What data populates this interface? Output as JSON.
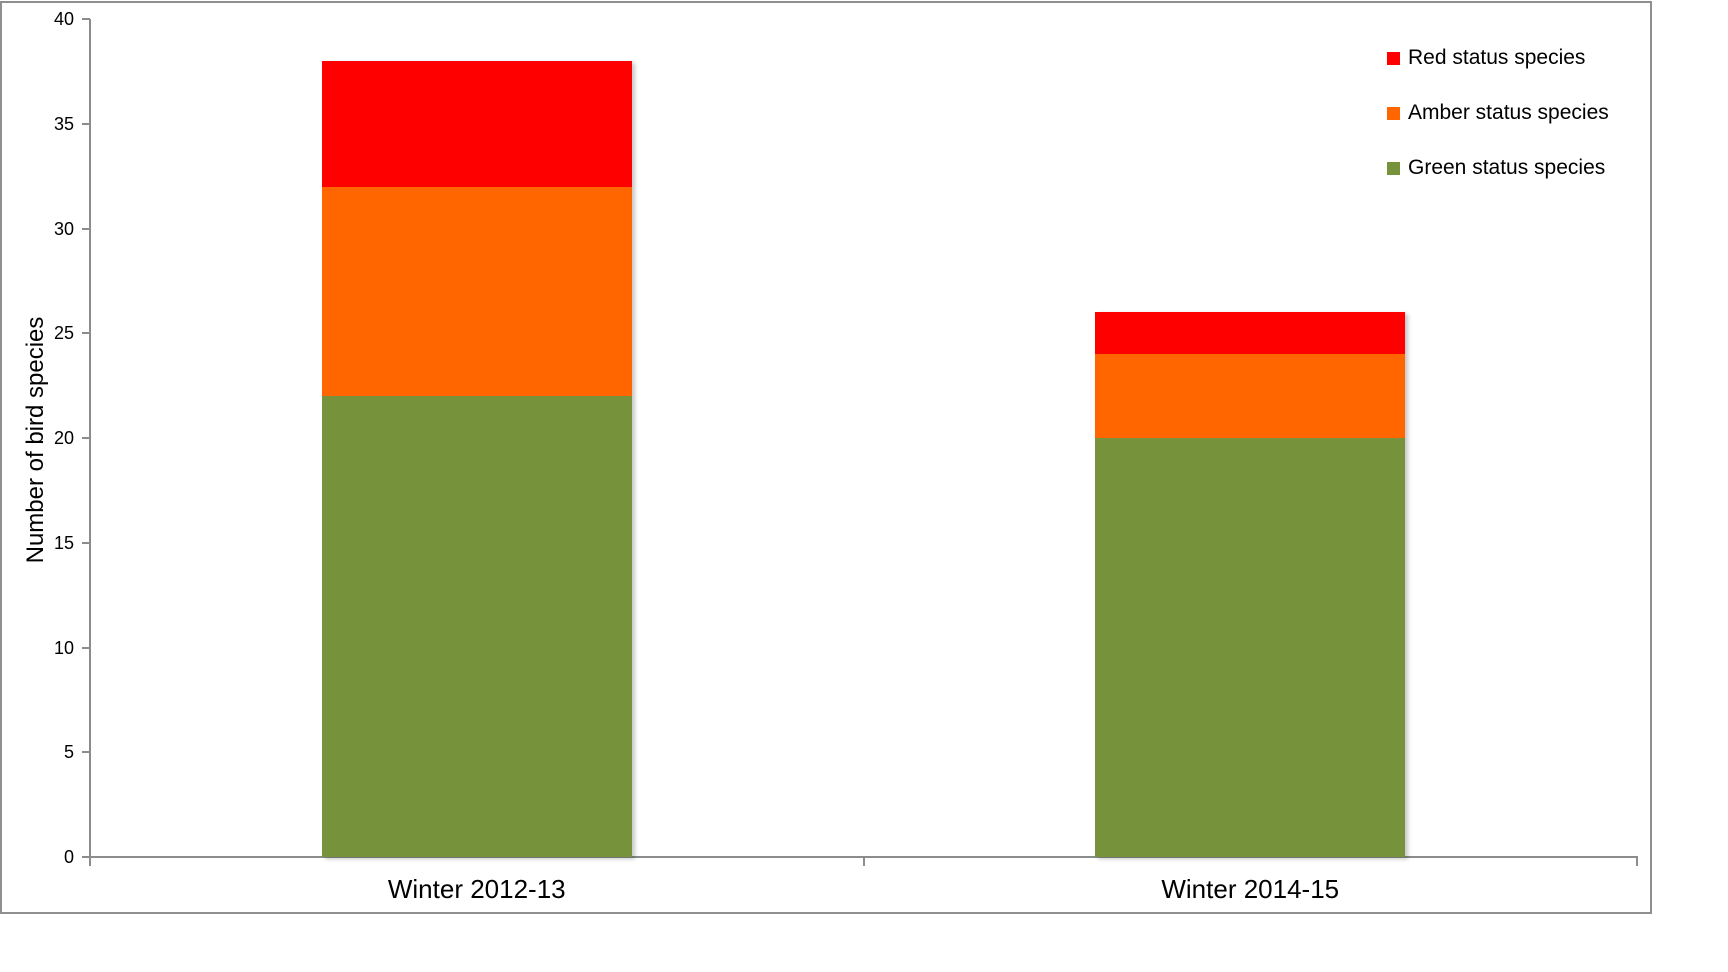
{
  "chart_data": {
    "type": "bar",
    "stacked": true,
    "title": "",
    "categories": [
      "Winter 2012-13",
      "Winter 2014-15"
    ],
    "series": [
      {
        "name": "Green status species",
        "color": "#76933C",
        "values": [
          22,
          20
        ]
      },
      {
        "name": "Amber status species",
        "color": "#FF6600",
        "values": [
          10,
          4
        ]
      },
      {
        "name": "Red status species",
        "color": "#FF0000",
        "values": [
          6,
          2
        ]
      }
    ],
    "totals": [
      38,
      26
    ],
    "xlabel": "",
    "ylabel": "Number of bird species",
    "ylim": [
      0,
      40
    ],
    "ytick_step": 5,
    "ytick_labels": [
      "0",
      "5",
      "10",
      "15",
      "20",
      "25",
      "30",
      "35",
      "40"
    ],
    "grid": "off",
    "legend_position": "top-right",
    "legend_order_top_to_bottom": [
      "Red status species",
      "Amber status species",
      "Green status species"
    ]
  },
  "frame": {
    "border_color": "#8f8f8f",
    "axis_color": "#8c8c8c",
    "background": "#ffffff"
  }
}
